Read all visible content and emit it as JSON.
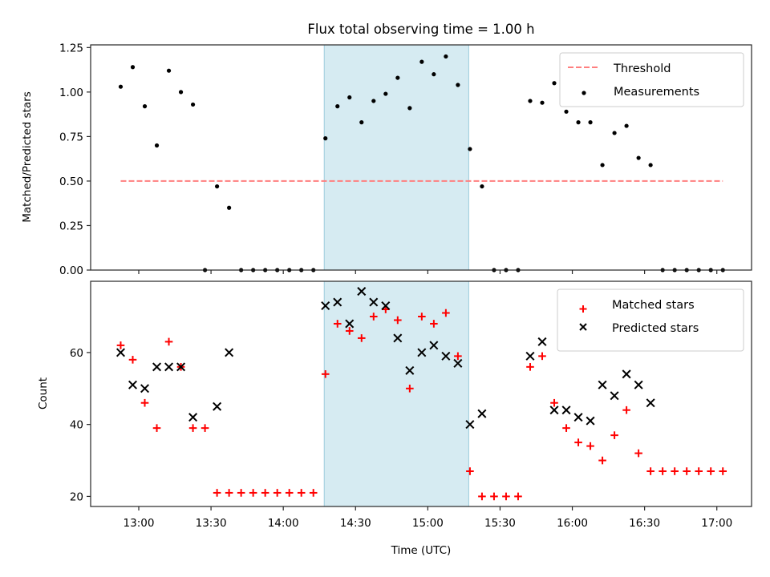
{
  "chart_data": [
    {
      "type": "scatter",
      "title": "Flux total observing time = 1.00 h",
      "xlabel": "",
      "ylabel": "Matched/Predicted stars",
      "ylim": [
        0,
        1.265
      ],
      "yticks": [
        0.0,
        0.25,
        0.5,
        0.75,
        1.0,
        1.25
      ],
      "ytick_labels": [
        "0.00",
        "0.25",
        "0.50",
        "0.75",
        "1.00",
        "1.25"
      ],
      "threshold": {
        "name": "Threshold",
        "value": 0.5,
        "start": "12:52:30",
        "end": "17:02:30",
        "color": "#ff7f7f",
        "style": "dashed"
      },
      "highlight_span": {
        "start": "14:17:00",
        "end": "15:17:00",
        "color": "#add8e6"
      },
      "legend": {
        "position": "top-right",
        "entries": [
          "Threshold",
          "Measurements"
        ]
      },
      "series": [
        {
          "name": "Measurements",
          "marker": "dot",
          "color": "#000000",
          "values": [
            1.03,
            1.14,
            0.92,
            0.7,
            1.12,
            1.0,
            0.93,
            0.0,
            0.47,
            0.35,
            0.0,
            0.0,
            0.0,
            0.0,
            0.0,
            0.0,
            0.0,
            0.74,
            0.92,
            0.97,
            0.83,
            0.95,
            0.99,
            1.08,
            0.91,
            1.17,
            1.1,
            1.2,
            1.04,
            0.68,
            0.47,
            0.0,
            0.0,
            0.0,
            0.95,
            0.94,
            1.05,
            0.89,
            0.83,
            0.83,
            0.59,
            0.77,
            0.81,
            0.63,
            0.59,
            0.0,
            0.0,
            0.0,
            0.0,
            0.0,
            0.0
          ]
        }
      ]
    },
    {
      "type": "scatter",
      "title": "",
      "xlabel": "Time (UTC)",
      "ylabel": "Count",
      "ylim": [
        17.2,
        79.8
      ],
      "yticks": [
        20,
        40,
        60
      ],
      "ytick_labels": [
        "20",
        "40",
        "60"
      ],
      "xlim": [
        "12:40:30",
        "17:14:30"
      ],
      "xticks": [
        "13:00",
        "13:30",
        "14:00",
        "14:30",
        "15:00",
        "15:30",
        "16:00",
        "16:30",
        "17:00"
      ],
      "highlight_span": {
        "start": "14:17:00",
        "end": "15:17:00",
        "color": "#add8e6"
      },
      "legend": {
        "position": "top-right",
        "entries": [
          "Matched stars",
          "Predicted stars"
        ]
      },
      "series": [
        {
          "name": "Matched stars",
          "marker": "plus",
          "color": "#ff0000",
          "values": [
            62,
            58,
            46,
            39,
            63,
            56,
            39,
            39,
            21,
            21,
            21,
            21,
            21,
            21,
            21,
            21,
            21,
            54,
            68,
            66,
            64,
            70,
            72,
            69,
            50,
            70,
            68,
            71,
            59,
            27,
            20,
            20,
            20,
            20,
            56,
            59,
            46,
            39,
            35,
            34,
            30,
            37,
            44,
            32,
            27,
            27,
            27,
            27,
            27,
            27,
            27
          ]
        },
        {
          "name": "Predicted stars",
          "marker": "x",
          "color": "#000000",
          "values": [
            60,
            51,
            50,
            56,
            56,
            56,
            42,
            null,
            45,
            60,
            null,
            null,
            null,
            null,
            null,
            null,
            null,
            73,
            74,
            68,
            77,
            74,
            73,
            64,
            55,
            60,
            62,
            59,
            57,
            40,
            43,
            null,
            null,
            null,
            59,
            63,
            44,
            44,
            42,
            41,
            51,
            48,
            54,
            51,
            46,
            null,
            null,
            null,
            null,
            null,
            null
          ]
        }
      ]
    }
  ],
  "shared_x": {
    "start": "12:52:30",
    "step_minutes": 5,
    "count": 51
  }
}
